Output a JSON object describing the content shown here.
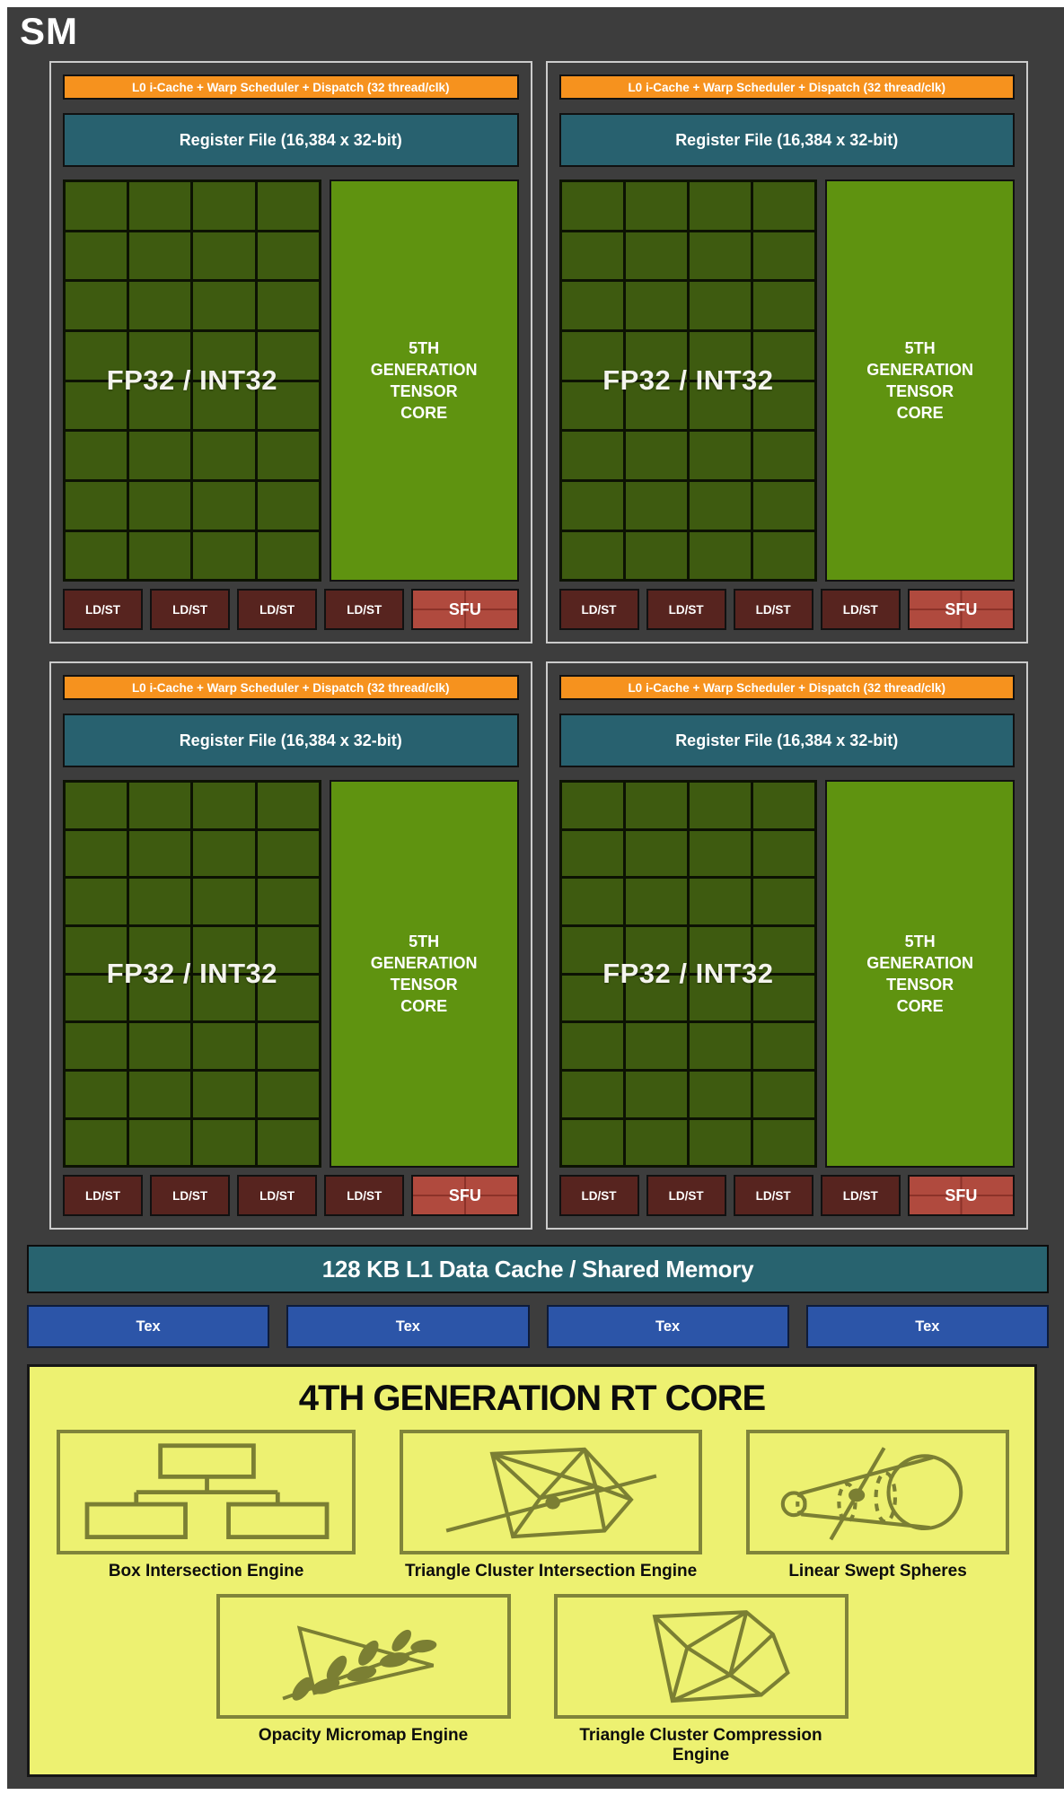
{
  "sm": {
    "title": "SM"
  },
  "partition": {
    "scheduler_label": "L0 i-Cache + Warp Scheduler + Dispatch (32 thread/clk)",
    "register_label": "Register File (16,384 x 32-bit)",
    "fp32_label": "FP32 / INT32",
    "tensor_label": "5TH GENERATION TENSOR CORE",
    "ldst_label": "LD/ST",
    "sfu_label": "SFU",
    "grid": {
      "rows": 8,
      "cols": 4
    },
    "count": 4
  },
  "memory": {
    "l1_label": "128 KB L1 Data Cache / Shared Memory",
    "tex_label": "Tex",
    "tex_count": 4
  },
  "rt_core": {
    "title": "4TH GENERATION RT CORE",
    "engines": [
      {
        "icon": "box-intersection-engine-icon",
        "label": "Box Intersection Engine"
      },
      {
        "icon": "triangle-cluster-intersection-engine-icon",
        "label": "Triangle Cluster Intersection Engine"
      },
      {
        "icon": "linear-swept-spheres-icon",
        "label": "Linear Swept Spheres"
      },
      {
        "icon": "opacity-micromap-engine-icon",
        "label": "Opacity Micromap Engine"
      },
      {
        "icon": "triangle-cluster-compression-engine-icon",
        "label": "Triangle Cluster Compression Engine"
      }
    ]
  },
  "colors": {
    "panel_bg": "#3d3d3d",
    "partition_border": "#cbcbcb",
    "scheduler_orange": "#f6921e",
    "register_teal": "#28616f",
    "core_cell_green": "#3e5b10",
    "tensor_green": "#5f9310",
    "ldst_maroon": "#57241f",
    "sfu_red": "#b04a3e",
    "tex_blue": "#2c55a8",
    "l1_teal": "#28636f",
    "rt_yellow": "#edf171",
    "rt_olive": "#7b7f33",
    "text_white": "#ffffff",
    "text_black": "#0c0c0c"
  }
}
